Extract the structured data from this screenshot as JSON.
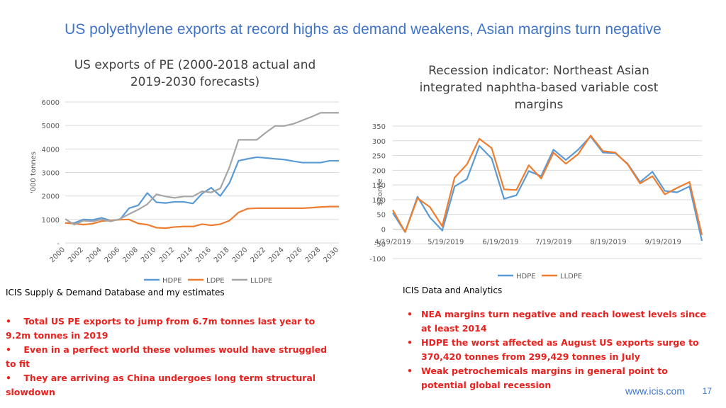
{
  "slide_title": "US polyethylene exports at record highs as demand weakens, Asian margins turn negative",
  "left_source": "ICIS Supply & Demand Database and my estimates",
  "right_source": "ICIS Data and Analytics",
  "left_bullets": [
    "Total US PE exports to jump from 6.7m tonnes last year to 9.2m tonnes in 2019",
    "Even in a perfect world these volumes would have struggled to fit",
    "They are arriving as China undergoes long term structural slowdown"
  ],
  "right_bullets": [
    "NEA margins turn negative and reach lowest levels since at least 2014",
    "HDPE the worst affected as August US exports surge to 370,420 tonnes from 299,429 tonnes in July",
    "Weak petrochemicals margins in general point to potential global recession"
  ],
  "footer_url": "www.icis.com",
  "page_number": "17",
  "chart_data": [
    {
      "type": "line",
      "title_line1": "US exports of PE (2000-2018 actual and",
      "title_line2": "2019-2030 forecasts)",
      "ylabel": "'000 tonnes",
      "xlabel": "",
      "ylim": [
        0,
        6000
      ],
      "yticks": [
        0,
        1000,
        2000,
        3000,
        4000,
        5000,
        6000
      ],
      "ytick_labels": [
        "-",
        "1000",
        "2000",
        "3000",
        "4000",
        "5000",
        "6000"
      ],
      "x": [
        2000,
        2001,
        2002,
        2003,
        2004,
        2005,
        2006,
        2007,
        2008,
        2009,
        2010,
        2011,
        2012,
        2013,
        2014,
        2015,
        2016,
        2017,
        2018,
        2019,
        2020,
        2021,
        2022,
        2023,
        2024,
        2025,
        2026,
        2027,
        2028,
        2029,
        2030
      ],
      "xtick_labels": [
        "2000",
        "2002",
        "2004",
        "2006",
        "2008",
        "2010",
        "2012",
        "2014",
        "2016",
        "2018",
        "2020",
        "2022",
        "2024",
        "2026",
        "2028",
        "2030"
      ],
      "grid": true,
      "legend_position": "bottom",
      "series": [
        {
          "name": "HDPE",
          "color": "#5b9bd5",
          "values": [
            850,
            850,
            1000,
            980,
            1070,
            950,
            1000,
            1480,
            1600,
            2130,
            1730,
            1700,
            1750,
            1750,
            1680,
            2100,
            2350,
            2000,
            2550,
            3500,
            3580,
            3650,
            3620,
            3580,
            3550,
            3480,
            3420,
            3420,
            3420,
            3500,
            3500
          ]
        },
        {
          "name": "LDPE",
          "color": "#ed7d31",
          "values": [
            850,
            820,
            780,
            820,
            930,
            960,
            990,
            1000,
            830,
            780,
            650,
            630,
            680,
            700,
            700,
            800,
            750,
            800,
            950,
            1300,
            1460,
            1480,
            1480,
            1480,
            1480,
            1480,
            1480,
            1500,
            1530,
            1550,
            1550
          ]
        },
        {
          "name": "LLDPE",
          "color": "#a5a5a5",
          "values": [
            1020,
            780,
            950,
            920,
            1000,
            920,
            1020,
            1230,
            1420,
            1650,
            2070,
            1980,
            1920,
            1980,
            1980,
            2200,
            2150,
            2320,
            3220,
            4390,
            4390,
            4390,
            4700,
            4980,
            4980,
            5070,
            5220,
            5370,
            5540,
            5540,
            5540
          ]
        }
      ]
    },
    {
      "type": "line",
      "title_line1": "Recession indicator: Northeast Asian",
      "title_line2": "integrated naphtha-based variable cost",
      "title_line3": "margins",
      "ylabel": "$/tonne",
      "xlabel": "",
      "ylim": [
        -100,
        350
      ],
      "yticks": [
        -100,
        -50,
        0,
        50,
        100,
        150,
        200,
        250,
        300,
        350
      ],
      "ytick_labels": [
        "-100",
        "-50",
        "0",
        "50",
        "100",
        "150",
        "200",
        "250",
        "300",
        "350"
      ],
      "x": [
        "2019-04-19",
        "2019-04-26",
        "2019-05-03",
        "2019-05-10",
        "2019-05-17",
        "2019-05-24",
        "2019-05-31",
        "2019-06-07",
        "2019-06-14",
        "2019-06-21",
        "2019-06-28",
        "2019-07-05",
        "2019-07-12",
        "2019-07-19",
        "2019-07-26",
        "2019-08-02",
        "2019-08-09",
        "2019-08-16",
        "2019-08-23",
        "2019-08-30",
        "2019-09-06",
        "2019-09-13",
        "2019-09-20",
        "2019-09-27",
        "2019-10-04",
        "2019-10-11"
      ],
      "xtick_labels": [
        "4/19/2019",
        "5/19/2019",
        "6/19/2019",
        "7/19/2019",
        "8/19/2019",
        "9/19/2019"
      ],
      "grid": true,
      "legend_position": "bottom",
      "series": [
        {
          "name": "HDPE",
          "color": "#5b9bd5",
          "values": [
            55,
            -10,
            110,
            40,
            -5,
            145,
            170,
            283,
            240,
            103,
            115,
            197,
            180,
            270,
            235,
            270,
            315,
            260,
            258,
            222,
            160,
            195,
            130,
            125,
            145,
            -40
          ]
        },
        {
          "name": "LLDPE",
          "color": "#ed7d31",
          "values": [
            65,
            -10,
            105,
            75,
            10,
            175,
            220,
            307,
            275,
            135,
            133,
            217,
            172,
            260,
            222,
            255,
            318,
            265,
            260,
            220,
            155,
            180,
            118,
            140,
            160,
            -20
          ]
        }
      ]
    }
  ]
}
